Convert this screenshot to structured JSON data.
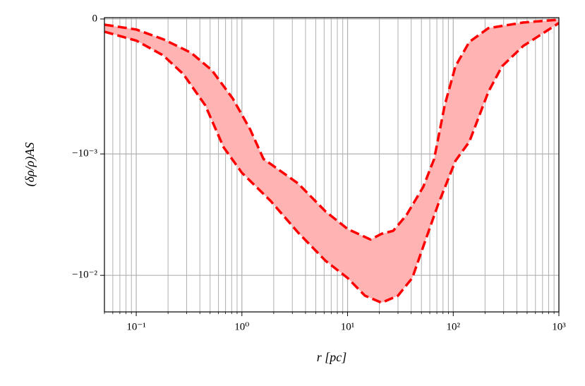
{
  "chart_data": {
    "type": "line",
    "xlabel": "r [pc]",
    "ylabel": "(δρ/ρ)AS",
    "xscale": "log",
    "yscale": "symlog",
    "linthresh": 0.001,
    "xlim": [
      0.05,
      1000
    ],
    "ylim": [
      -0.02,
      1e-05
    ],
    "xticks": [
      {
        "value": 0.1,
        "label": "10⁻¹"
      },
      {
        "value": 1,
        "label": "10⁰"
      },
      {
        "value": 10,
        "label": "10¹"
      },
      {
        "value": 100,
        "label": "10²"
      },
      {
        "value": 1000,
        "label": "10³"
      }
    ],
    "yticks": [
      0,
      {
        "value": -0.001,
        "label": "−10⁻³"
      },
      {
        "value": -0.01,
        "label": "−10⁻²"
      }
    ],
    "grid": true,
    "minor_grid": true,
    "fill_between": true,
    "fill_color": "#ffb3b3",
    "series": [
      {
        "color": "#ff0000",
        "x": [
          0.05,
          0.1,
          0.18,
          0.33,
          0.52,
          0.82,
          1.2,
          1.6,
          3.4,
          6.2,
          10,
          16.5,
          21,
          27,
          36,
          52,
          66,
          83,
          105,
          142,
          215,
          460,
          1000
        ],
        "values": [
          -4.2e-05,
          -7.8e-05,
          -0.00015,
          -0.00025,
          -0.00038,
          -0.00059,
          -0.00082,
          -0.0011,
          -0.00175,
          -0.00298,
          -0.00415,
          -0.00507,
          -0.00455,
          -0.0043,
          -0.0032,
          -0.00187,
          -0.0011,
          -0.00064,
          -0.00035,
          -0.00017,
          -6.8e-05,
          -2.6e-05,
          -5e-06
        ]
      },
      {
        "color": "#ff0000",
        "x": [
          0.05,
          0.1,
          0.18,
          0.28,
          0.45,
          0.67,
          1.0,
          1.87,
          3.4,
          6.2,
          10,
          14.6,
          21,
          30,
          41,
          52,
          72,
          105,
          142,
          215,
          290,
          460,
          1000
        ],
        "values": [
          -9.4e-05,
          -0.00016,
          -0.00027,
          -0.00041,
          -0.00064,
          -0.00095,
          -0.00143,
          -0.00244,
          -0.00444,
          -0.0076,
          -0.0105,
          -0.0147,
          -0.0168,
          -0.0147,
          -0.0105,
          -0.0058,
          -0.0026,
          -0.00114,
          -0.00091,
          -0.00054,
          -0.00035,
          -0.0002,
          -3e-05
        ]
      }
    ]
  }
}
